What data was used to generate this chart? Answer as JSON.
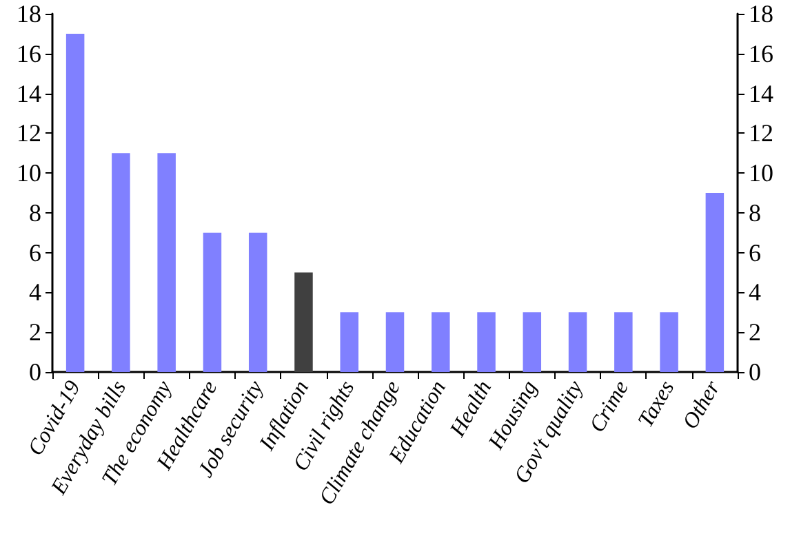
{
  "chart_data": {
    "type": "bar",
    "categories": [
      "Covid-19",
      "Everyday bills",
      "The economy",
      "Healthcare",
      "Job security",
      "Inflation",
      "Civil rights",
      "Climate change",
      "Education",
      "Health",
      "Housing",
      "Gov't quality",
      "Crime",
      "Taxes",
      "Other"
    ],
    "values": [
      17,
      11,
      11,
      7,
      7,
      5,
      3,
      3,
      3,
      3,
      3,
      3,
      3,
      3,
      9
    ],
    "colors": [
      "#8080ff",
      "#8080ff",
      "#8080ff",
      "#8080ff",
      "#8080ff",
      "#404040",
      "#8080ff",
      "#8080ff",
      "#8080ff",
      "#8080ff",
      "#8080ff",
      "#8080ff",
      "#8080ff",
      "#8080ff",
      "#8080ff"
    ],
    "ylim": [
      0,
      18
    ],
    "yticks": [
      0,
      2,
      4,
      6,
      8,
      10,
      12,
      14,
      16,
      18
    ],
    "y2lim": [
      0,
      18
    ],
    "y2ticks": [
      0,
      2,
      4,
      6,
      8,
      10,
      12,
      14,
      16,
      18
    ],
    "grid": false
  }
}
